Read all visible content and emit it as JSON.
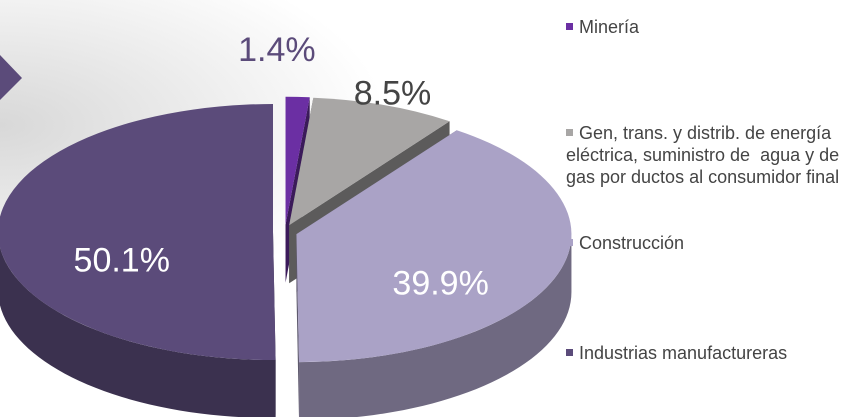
{
  "chart_data": {
    "type": "pie",
    "categories": [
      "Minería",
      "Gen, trans. y distrib. de energía eléctrica, suministro de  agua y de gas por ductos al consumidor final",
      "Construcción",
      "Industrias manufactureras"
    ],
    "values": [
      1.4,
      8.5,
      39.9,
      50.1
    ],
    "value_labels": [
      "1.4%",
      "8.5%",
      "39.9%",
      "50.1%"
    ],
    "colors": [
      "#6b2fa3",
      "#a8a6a5",
      "#aaa2c6",
      "#5b4b7a"
    ]
  }
}
